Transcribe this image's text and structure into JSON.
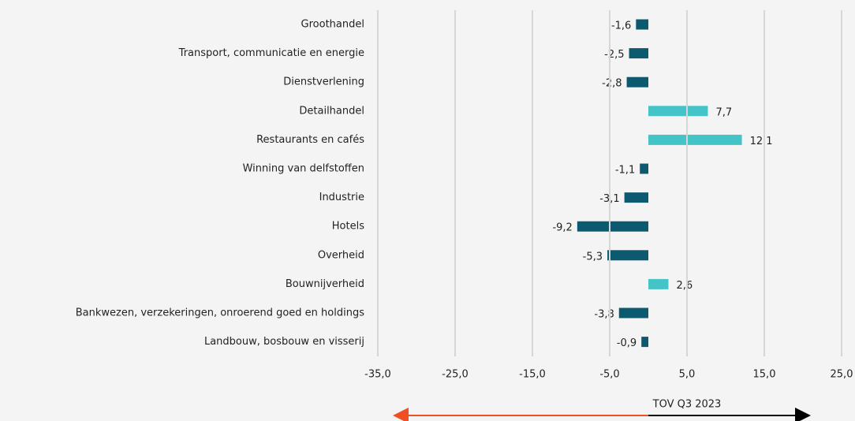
{
  "chart_data": {
    "type": "hbar",
    "categories": [
      "Groothandel",
      "Transport, communicatie en energie",
      "Dienstverlening",
      "Detailhandel",
      "Restaurants en cafés",
      "Winning van delfstoffen",
      "Industrie",
      "Hotels",
      "Overheid",
      "Bouwnijverheid",
      "Bankwezen, verzekeringen, onroerend goed en holdings",
      "Landbouw, bosbouw en visserij"
    ],
    "values": [
      -1.6,
      -2.5,
      -2.8,
      7.7,
      12.1,
      -1.1,
      -3.1,
      -9.2,
      -5.3,
      2.6,
      -3.8,
      -0.9
    ],
    "value_labels": [
      "-1,6",
      "-2,5",
      "-2,8",
      "7,7",
      "12,1",
      "-1,1",
      "-3,1",
      "-9,2",
      "-5,3",
      "2,6",
      "-3,8",
      "-0,9"
    ],
    "colors": [
      "#0b5a70",
      "#0b5a70",
      "#0b5a70",
      "#45c4c8",
      "#45c4c8",
      "#0b5a70",
      "#0b5a70",
      "#0b5a70",
      "#0b5a70",
      "#45c4c8",
      "#0b5a70",
      "#0b5a70"
    ],
    "xlim": [
      -35,
      25
    ],
    "xticks": [
      {
        "value": -35,
        "label": "-35,0"
      },
      {
        "value": -25,
        "label": "-25,0"
      },
      {
        "value": -15,
        "label": "-15,0"
      },
      {
        "value": -5,
        "label": "-5,0"
      },
      {
        "value": 5,
        "label": "5,0"
      },
      {
        "value": 15,
        "label": "15,0"
      },
      {
        "value": 25,
        "label": "25,0"
      }
    ],
    "grid": true,
    "annotation": "TOV Q3 2023"
  }
}
